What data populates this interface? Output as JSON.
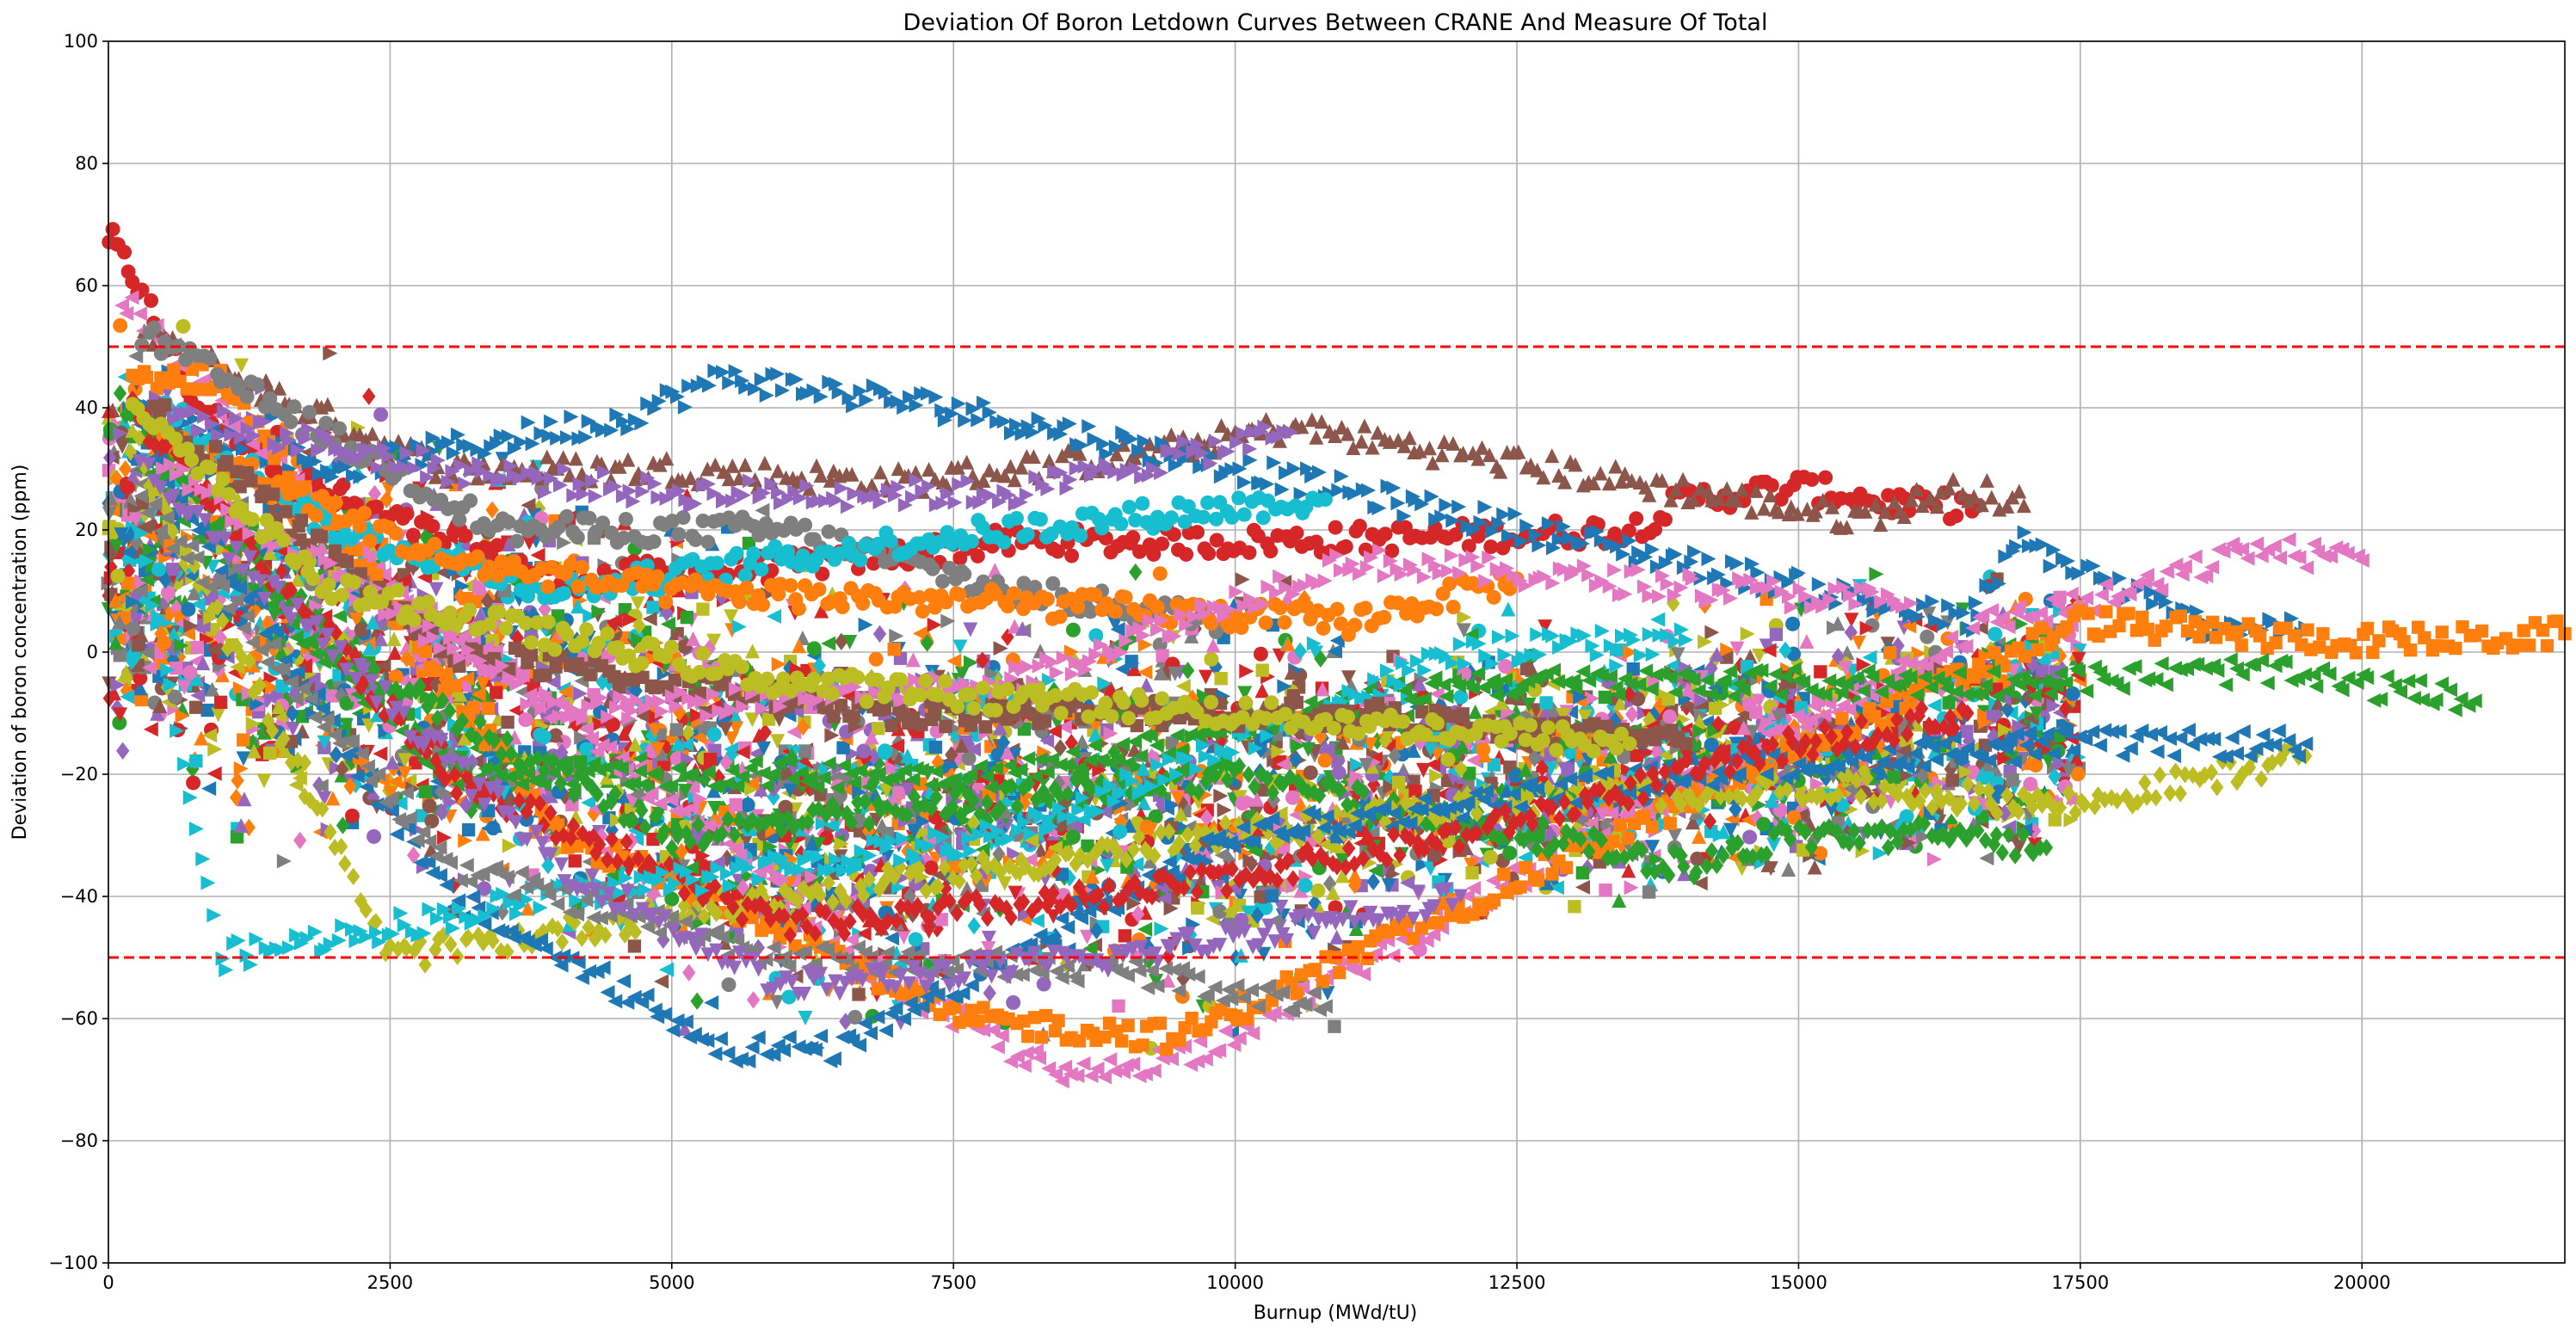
{
  "chart_data": {
    "type": "scatter",
    "title": "Deviation Of Boron Letdown Curves Between CRANE And Measure Of Total",
    "xlabel": "Burnup (MWd/tU)",
    "ylabel": "Deviation of boron concentration (ppm)",
    "xlim": [
      0,
      21800
    ],
    "ylim": [
      -100,
      100
    ],
    "xticks": [
      0,
      2500,
      5000,
      7500,
      10000,
      12500,
      15000,
      17500,
      20000
    ],
    "yticks": [
      -100,
      -80,
      -60,
      -40,
      -20,
      0,
      20,
      40,
      60,
      80,
      100
    ],
    "xtick_labels": [
      "0",
      "2500",
      "5000",
      "7500",
      "10000",
      "12500",
      "15000",
      "17500",
      "20000"
    ],
    "ytick_labels": [
      "−100",
      "−80",
      "−60",
      "−40",
      "−20",
      "0",
      "20",
      "40",
      "60",
      "80",
      "100"
    ],
    "grid": true,
    "reference_lines": [
      {
        "y": 50,
        "color": "#ff0000",
        "style": "dashed"
      },
      {
        "y": -50,
        "color": "#ff0000",
        "style": "dashed"
      }
    ],
    "palette": [
      "#1f77b4",
      "#ff7f0e",
      "#2ca02c",
      "#d62728",
      "#9467bd",
      "#8c564b",
      "#e377c2",
      "#7f7f7f",
      "#bcbd22",
      "#17becf"
    ],
    "markers": [
      "circle",
      "triangle-right",
      "triangle-left",
      "triangle-up",
      "triangle-down",
      "square",
      "diamond"
    ],
    "series": [
      {
        "name": "s1",
        "color": "#d62728",
        "marker": "circle",
        "points": [
          [
            0,
            68
          ],
          [
            200,
            62
          ],
          [
            800,
            40
          ],
          [
            2000,
            25
          ],
          [
            4000,
            12
          ],
          [
            6000,
            14
          ],
          [
            8000,
            18
          ],
          [
            10000,
            18
          ],
          [
            12000,
            19
          ],
          [
            13500,
            20
          ],
          [
            14000,
            25
          ],
          [
            15000,
            27
          ],
          [
            16000,
            24
          ],
          [
            16600,
            24
          ]
        ]
      },
      {
        "name": "s2",
        "color": "#8c564b",
        "marker": "triangle-up",
        "points": [
          [
            300,
            52
          ],
          [
            1500,
            42
          ],
          [
            3000,
            30
          ],
          [
            5000,
            30
          ],
          [
            7000,
            28
          ],
          [
            9000,
            32
          ],
          [
            10500,
            37
          ],
          [
            15500,
            22
          ],
          [
            16500,
            27
          ],
          [
            17000,
            24
          ]
        ]
      },
      {
        "name": "s3",
        "color": "#1f77b4",
        "marker": "triangle-right",
        "points": [
          [
            200,
            40
          ],
          [
            2000,
            30
          ],
          [
            4500,
            38
          ],
          [
            5500,
            45
          ],
          [
            7500,
            40
          ],
          [
            16500,
            5
          ],
          [
            17000,
            18
          ],
          [
            18500,
            5
          ],
          [
            19500,
            4
          ]
        ]
      },
      {
        "name": "s4",
        "color": "#e377c2",
        "marker": "triangle-left",
        "points": [
          [
            100,
            58
          ],
          [
            2000,
            20
          ],
          [
            5000,
            -25
          ],
          [
            7000,
            -55
          ],
          [
            8500,
            -70
          ],
          [
            9700,
            -65
          ],
          [
            16700,
            5
          ],
          [
            18000,
            10
          ],
          [
            19000,
            17
          ],
          [
            20000,
            15
          ]
        ]
      },
      {
        "name": "s5",
        "color": "#ff7f0e",
        "marker": "square",
        "points": [
          [
            200,
            45
          ],
          [
            1000,
            45
          ],
          [
            4000,
            -30
          ],
          [
            6000,
            -45
          ],
          [
            7500,
            -60
          ],
          [
            9500,
            -63
          ],
          [
            17500,
            5
          ],
          [
            19500,
            2
          ],
          [
            21000,
            2
          ],
          [
            21800,
            3
          ]
        ]
      },
      {
        "name": "s6",
        "color": "#2ca02c",
        "marker": "diamond",
        "points": [
          [
            100,
            42
          ],
          [
            2000,
            0
          ],
          [
            5000,
            -30
          ],
          [
            10000,
            -20
          ],
          [
            14000,
            -35
          ],
          [
            15000,
            -30
          ],
          [
            16500,
            -30
          ],
          [
            17200,
            -32
          ]
        ]
      },
      {
        "name": "s7",
        "color": "#2ca02c",
        "marker": "triangle-left",
        "points": [
          [
            300,
            30
          ],
          [
            3000,
            -20
          ],
          [
            8000,
            -20
          ],
          [
            12000,
            -5
          ],
          [
            15000,
            -5
          ],
          [
            17000,
            -5
          ],
          [
            19000,
            -3
          ],
          [
            21000,
            -8
          ]
        ]
      },
      {
        "name": "s8",
        "color": "#bcbd22",
        "marker": "diamond",
        "points": [
          [
            200,
            35
          ],
          [
            2500,
            -50
          ],
          [
            6000,
            -40
          ],
          [
            12000,
            -25
          ],
          [
            15000,
            -22
          ],
          [
            17500,
            -25
          ],
          [
            19500,
            -17
          ]
        ]
      },
      {
        "name": "s9",
        "color": "#1f77b4",
        "marker": "triangle-left",
        "points": [
          [
            300,
            35
          ],
          [
            3000,
            -40
          ],
          [
            5500,
            -65
          ],
          [
            6500,
            -65
          ],
          [
            10000,
            -30
          ],
          [
            14000,
            -20
          ],
          [
            17000,
            -15
          ],
          [
            19500,
            -15
          ]
        ]
      },
      {
        "name": "s10",
        "color": "#7f7f7f",
        "marker": "circle",
        "points": [
          [
            300,
            52
          ],
          [
            1500,
            40
          ],
          [
            3500,
            20
          ],
          [
            6000,
            20
          ],
          [
            8000,
            10
          ],
          [
            10000,
            5
          ]
        ]
      },
      {
        "name": "s11",
        "color": "#17becf",
        "marker": "circle",
        "points": [
          [
            500,
            40
          ],
          [
            2000,
            20
          ],
          [
            4000,
            10
          ],
          [
            7000,
            18
          ],
          [
            9000,
            22
          ],
          [
            10800,
            25
          ]
        ]
      },
      {
        "name": "s12",
        "color": "#9467bd",
        "marker": "triangle-right",
        "points": [
          [
            300,
            40
          ],
          [
            3000,
            30
          ],
          [
            5000,
            26
          ],
          [
            8000,
            26
          ],
          [
            10500,
            36
          ]
        ]
      },
      {
        "name": "s13",
        "color": "#ff7f0e",
        "marker": "circle",
        "points": [
          [
            500,
            35
          ],
          [
            3000,
            15
          ],
          [
            5000,
            10
          ],
          [
            8000,
            8
          ],
          [
            11000,
            5
          ],
          [
            12500,
            12
          ]
        ]
      },
      {
        "name": "s14",
        "color": "#d62728",
        "marker": "diamond",
        "points": [
          [
            200,
            40
          ],
          [
            3000,
            -20
          ],
          [
            6000,
            -45
          ],
          [
            9000,
            -40
          ],
          [
            12000,
            -30
          ],
          [
            15000,
            -15
          ],
          [
            16500,
            -10
          ]
        ]
      },
      {
        "name": "s15",
        "color": "#17becf",
        "marker": "triangle-right",
        "points": [
          [
            300,
            20
          ],
          [
            1000,
            -50
          ],
          [
            4000,
            -40
          ],
          [
            8000,
            -30
          ],
          [
            12000,
            0
          ],
          [
            14000,
            2
          ]
        ]
      },
      {
        "name": "s16",
        "color": "#7f7f7f",
        "marker": "triangle-left",
        "points": [
          [
            300,
            25
          ],
          [
            3000,
            -35
          ],
          [
            6000,
            -50
          ],
          [
            9000,
            -52
          ],
          [
            10800,
            -58
          ]
        ]
      },
      {
        "name": "s17",
        "color": "#8c564b",
        "marker": "square",
        "points": [
          [
            400,
            40
          ],
          [
            3000,
            0
          ],
          [
            7000,
            -10
          ],
          [
            11000,
            -10
          ],
          [
            14000,
            -15
          ]
        ]
      },
      {
        "name": "s18",
        "color": "#e377c2",
        "marker": "triangle-right",
        "points": [
          [
            500,
            30
          ],
          [
            4000,
            -10
          ],
          [
            8000,
            -5
          ],
          [
            11000,
            15
          ],
          [
            16000,
            8
          ]
        ]
      },
      {
        "name": "s19",
        "color": "#9467bd",
        "marker": "triangle-down",
        "points": [
          [
            300,
            30
          ],
          [
            4000,
            -35
          ],
          [
            6000,
            -55
          ],
          [
            9000,
            -50
          ],
          [
            12000,
            -40
          ]
        ]
      },
      {
        "name": "s20",
        "color": "#bcbd22",
        "marker": "circle",
        "points": [
          [
            200,
            40
          ],
          [
            2000,
            10
          ],
          [
            6000,
            -5
          ],
          [
            10000,
            -10
          ],
          [
            13500,
            -15
          ]
        ]
      }
    ]
  }
}
